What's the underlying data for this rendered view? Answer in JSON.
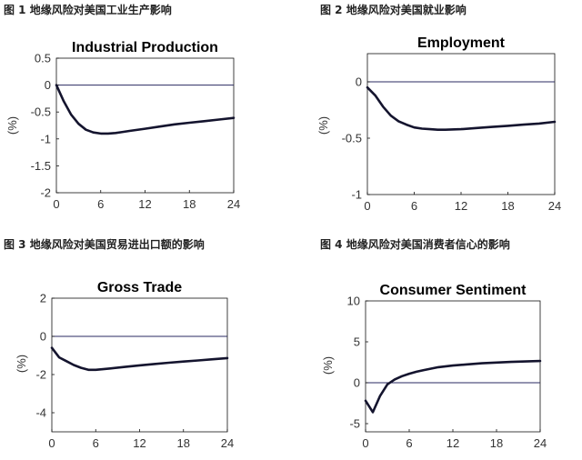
{
  "captions": [
    "图 1 地缘风险对美国工业生产影响",
    "图 2 地缘风险对美国就业影响",
    "图 3 地缘风险对美国贸易进出口额的影响",
    "图 4 地缘风险对美国消费者信心的影响"
  ],
  "chart_data": [
    {
      "type": "line",
      "title": "Industrial Production",
      "ylabel": "(%)",
      "xlim": [
        0,
        24
      ],
      "ylim": [
        -2,
        0.5
      ],
      "xticks": [
        0,
        6,
        12,
        18,
        24
      ],
      "yticks": [
        0.5,
        0,
        -0.5,
        -1,
        -1.5,
        -2
      ],
      "ytick_labels": [
        "0.5",
        "0",
        "-0.5",
        "-1",
        "-1.5",
        "-2"
      ],
      "series": [
        {
          "x": [
            0,
            1,
            2,
            3,
            4,
            5,
            6,
            7,
            8,
            9,
            10,
            12,
            14,
            16,
            18,
            20,
            22,
            24
          ],
          "values": [
            0,
            -0.3,
            -0.55,
            -0.72,
            -0.83,
            -0.88,
            -0.9,
            -0.9,
            -0.89,
            -0.87,
            -0.85,
            -0.81,
            -0.77,
            -0.73,
            -0.7,
            -0.67,
            -0.64,
            -0.61
          ]
        }
      ],
      "baseline": 0
    },
    {
      "type": "line",
      "title": "Employment",
      "ylabel": "(%)",
      "xlim": [
        0,
        24
      ],
      "ylim": [
        -1,
        0.25
      ],
      "xticks": [
        0,
        6,
        12,
        18,
        24
      ],
      "yticks": [
        0,
        -0.5,
        -1
      ],
      "ytick_labels": [
        "0",
        "-0.5",
        "-1"
      ],
      "series": [
        {
          "x": [
            0,
            1,
            2,
            3,
            4,
            5,
            6,
            7,
            8,
            9,
            10,
            12,
            14,
            16,
            18,
            20,
            22,
            24
          ],
          "values": [
            -0.05,
            -0.12,
            -0.22,
            -0.3,
            -0.35,
            -0.38,
            -0.405,
            -0.415,
            -0.42,
            -0.425,
            -0.425,
            -0.42,
            -0.41,
            -0.4,
            -0.39,
            -0.38,
            -0.37,
            -0.355
          ]
        }
      ],
      "baseline": 0
    },
    {
      "type": "line",
      "title": "Gross Trade",
      "ylabel": "(%)",
      "xlim": [
        0,
        24
      ],
      "ylim": [
        -5,
        2
      ],
      "xticks": [
        0,
        6,
        12,
        18,
        24
      ],
      "yticks": [
        2,
        0,
        -2,
        -4
      ],
      "ytick_labels": [
        "2",
        "0",
        "-2",
        "-4"
      ],
      "series": [
        {
          "x": [
            0,
            1,
            2,
            3,
            4,
            5,
            6,
            7,
            8,
            10,
            12,
            14,
            16,
            18,
            20,
            22,
            24
          ],
          "values": [
            -0.6,
            -1.1,
            -1.3,
            -1.5,
            -1.65,
            -1.75,
            -1.75,
            -1.72,
            -1.68,
            -1.6,
            -1.52,
            -1.45,
            -1.38,
            -1.32,
            -1.26,
            -1.2,
            -1.14
          ]
        }
      ],
      "baseline": 0
    },
    {
      "type": "line",
      "title": "Consumer Sentiment",
      "ylabel": "(%)",
      "xlim": [
        0,
        24
      ],
      "ylim": [
        -6,
        10
      ],
      "xticks": [
        0,
        6,
        12,
        18,
        24
      ],
      "yticks": [
        10,
        5,
        0,
        -5
      ],
      "ytick_labels": [
        "10",
        "5",
        "0",
        "-5"
      ],
      "series": [
        {
          "x": [
            0,
            1,
            2,
            3,
            4,
            5,
            6,
            7,
            8,
            10,
            12,
            14,
            16,
            18,
            20,
            22,
            24
          ],
          "values": [
            -2.2,
            -3.6,
            -1.6,
            -0.2,
            0.4,
            0.8,
            1.1,
            1.35,
            1.55,
            1.9,
            2.1,
            2.25,
            2.38,
            2.47,
            2.55,
            2.6,
            2.65
          ]
        }
      ],
      "baseline": 0
    }
  ]
}
